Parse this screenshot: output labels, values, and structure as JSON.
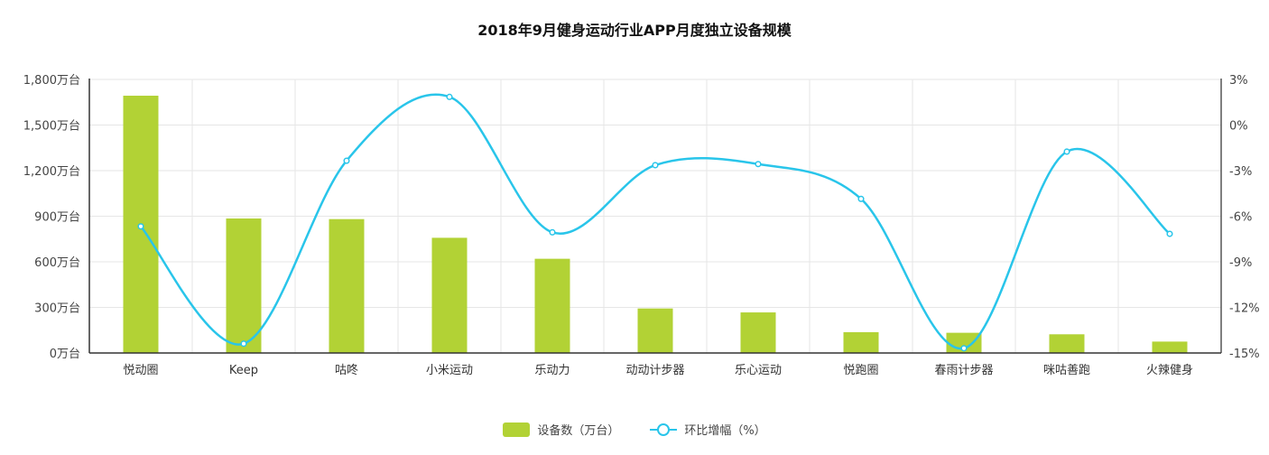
{
  "chart_data": {
    "type": "bar",
    "title": "2018年9月健身运动行业APP月度独立设备规模",
    "categories": [
      "悦动圈",
      "Keep",
      "咕咚",
      "小米运动",
      "乐动力",
      "动动计步器",
      "乐心运动",
      "悦跑圈",
      "春雨计步器",
      "咪咕善跑",
      "火辣健身"
    ],
    "series": [
      {
        "name": "设备数（万台）",
        "type": "bar",
        "axis": "left",
        "color": "#b2d235",
        "values": [
          1693,
          885,
          881,
          758,
          620,
          293,
          267,
          137,
          133,
          123,
          75
        ]
      },
      {
        "name": "环比增幅（%）",
        "type": "line",
        "axis": "right",
        "color": "#29c5ea",
        "values": [
          -6.67,
          -14.39,
          -2.35,
          1.85,
          -7.06,
          -2.64,
          -2.57,
          -4.86,
          -14.69,
          -1.75,
          -7.16
        ]
      }
    ],
    "left_axis": {
      "ylim": [
        0,
        1800
      ],
      "ticks": [
        0,
        300,
        600,
        900,
        1200,
        1500,
        1800
      ],
      "tick_labels": [
        "0万台",
        "300万台",
        "600万台",
        "900万台",
        "1,200万台",
        "1,500万台",
        "1,800万台"
      ]
    },
    "right_axis": {
      "ylim": [
        -15,
        3
      ],
      "ticks": [
        -15,
        -12,
        -9,
        -6,
        -3,
        0,
        3
      ],
      "tick_labels": [
        "-15%",
        "-12%",
        "-9%",
        "-6%",
        "-3%",
        "0%",
        "3%"
      ]
    },
    "grid": true,
    "legend_position": "bottom"
  }
}
